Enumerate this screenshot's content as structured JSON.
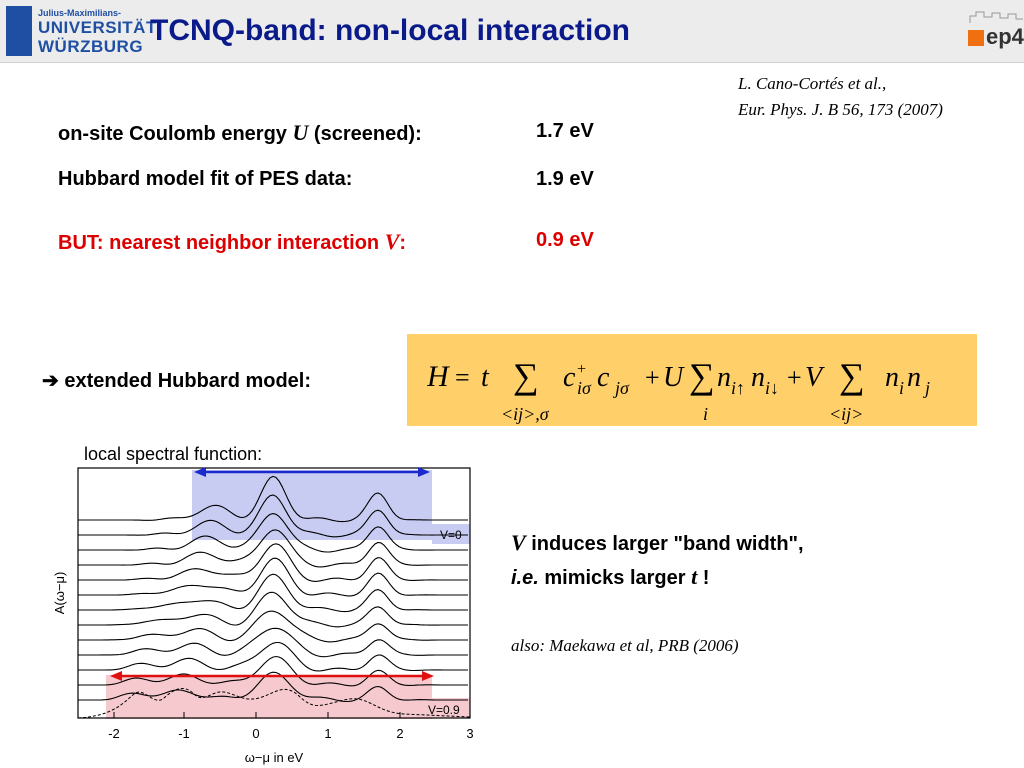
{
  "header": {
    "logo_small": "Julius-Maximilians-",
    "logo_line1": "UNIVERSITÄT",
    "logo_line2": "WÜRZBURG",
    "title": "TCNQ-band: non-local interaction",
    "ep4_label": "ep4"
  },
  "reference": {
    "line1": "L. Cano-Cortés et al.,",
    "line2": "Eur. Phys. J. B 56, 173 (2007)"
  },
  "params": [
    {
      "label_pre": "on-site Coulomb energy ",
      "symbol": "U",
      "label_post": " (screened):",
      "value": "1.7 eV"
    },
    {
      "label_pre": "Hubbard model fit of PES data:",
      "symbol": "",
      "label_post": "",
      "value": "1.9 eV"
    },
    {
      "label_pre": "BUT: nearest neighbor interaction ",
      "symbol": "V",
      "label_post": ":",
      "value": "0.9 eV"
    }
  ],
  "model": {
    "arrow": "➔",
    "label": "extended Hubbard model:"
  },
  "spectral": {
    "label": "local spectral function:",
    "ylabel": "A(ω−μ)",
    "xlabel": "ω−μ in eV",
    "x_ticks": [
      "-2",
      "-1",
      "0",
      "1",
      "2",
      "3"
    ],
    "tag_top": "V=0",
    "tag_bottom": "V=0.9"
  },
  "notes": {
    "line1_symbol": "V",
    "line1_text": " induces larger \"band width\",",
    "line2_ie": "i.e.",
    "line2_text": " mimicks larger ",
    "line2_symbol": "t",
    "line2_end": " !",
    "also": "also: Maekawa et al, PRB (2006)"
  },
  "colors": {
    "title": "#0a1a8a",
    "highlight_red": "#dd0000",
    "formula_bg": "#ffd06a",
    "band_blue": "#c9ccf2",
    "band_pink": "#f6c9cf",
    "arrow_blue": "#1a2acc",
    "arrow_red": "#e01010"
  }
}
